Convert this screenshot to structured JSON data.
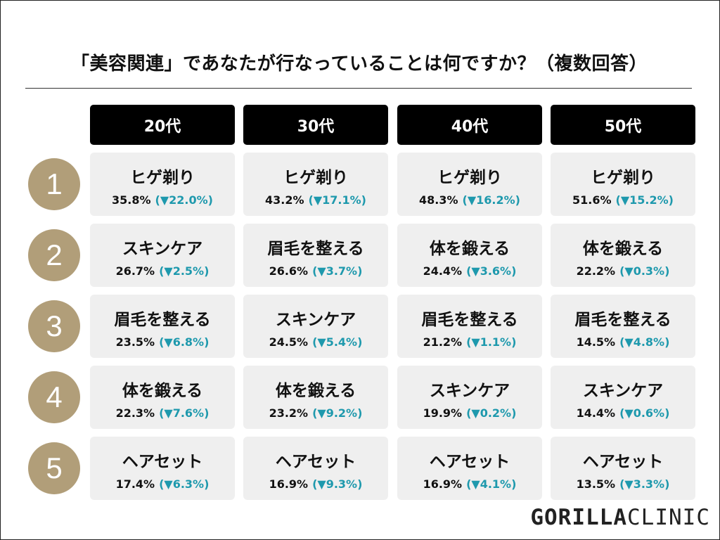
{
  "title": "「美容関連」であなたが行なっていることは何ですか？（複数回答）",
  "headers": [
    "20代",
    "30代",
    "40代",
    "50代"
  ],
  "ranks": [
    "1",
    "2",
    "3",
    "4",
    "5"
  ],
  "rows": [
    [
      {
        "item": "ヒゲ剃り",
        "pct": "35.8%",
        "chg": "(▼22.0%)"
      },
      {
        "item": "ヒゲ剃り",
        "pct": "43.2%",
        "chg": "(▼17.1%)"
      },
      {
        "item": "ヒゲ剃り",
        "pct": "48.3%",
        "chg": "(▼16.2%)"
      },
      {
        "item": "ヒゲ剃り",
        "pct": "51.6%",
        "chg": "(▼15.2%)"
      }
    ],
    [
      {
        "item": "スキンケア",
        "pct": "26.7%",
        "chg": "(▼2.5%)"
      },
      {
        "item": "眉毛を整える",
        "pct": "26.6%",
        "chg": "(▼3.7%)"
      },
      {
        "item": "体を鍛える",
        "pct": "24.4%",
        "chg": "(▼3.6%)"
      },
      {
        "item": "体を鍛える",
        "pct": "22.2%",
        "chg": "(▼0.3%)"
      }
    ],
    [
      {
        "item": "眉毛を整える",
        "pct": "23.5%",
        "chg": "(▼6.8%)"
      },
      {
        "item": "スキンケア",
        "pct": "24.5%",
        "chg": "(▼5.4%)"
      },
      {
        "item": "眉毛を整える",
        "pct": "21.2%",
        "chg": "(▼1.1%)"
      },
      {
        "item": "眉毛を整える",
        "pct": "14.5%",
        "chg": "(▼4.8%)"
      }
    ],
    [
      {
        "item": "体を鍛える",
        "pct": "22.3%",
        "chg": "(▼7.6%)"
      },
      {
        "item": "体を鍛える",
        "pct": "23.2%",
        "chg": "(▼9.2%)"
      },
      {
        "item": "スキンケア",
        "pct": "19.9%",
        "chg": "(▼0.2%)"
      },
      {
        "item": "スキンケア",
        "pct": "14.4%",
        "chg": "(▼0.6%)"
      }
    ],
    [
      {
        "item": "ヘアセット",
        "pct": "17.4%",
        "chg": "(▼6.3%)"
      },
      {
        "item": "ヘアセット",
        "pct": "16.9%",
        "chg": "(▼9.3%)"
      },
      {
        "item": "ヘアセット",
        "pct": "16.9%",
        "chg": "(▼4.1%)"
      },
      {
        "item": "ヘアセット",
        "pct": "13.5%",
        "chg": "(▼3.3%)"
      }
    ]
  ],
  "brand": {
    "part1": "GORILLA",
    "part2": "CLINIC"
  },
  "colors": {
    "header_bg": "#000000",
    "rank_badge": "#b19e79",
    "cell_bg": "#efefef",
    "change_text": "#1e99ad"
  }
}
